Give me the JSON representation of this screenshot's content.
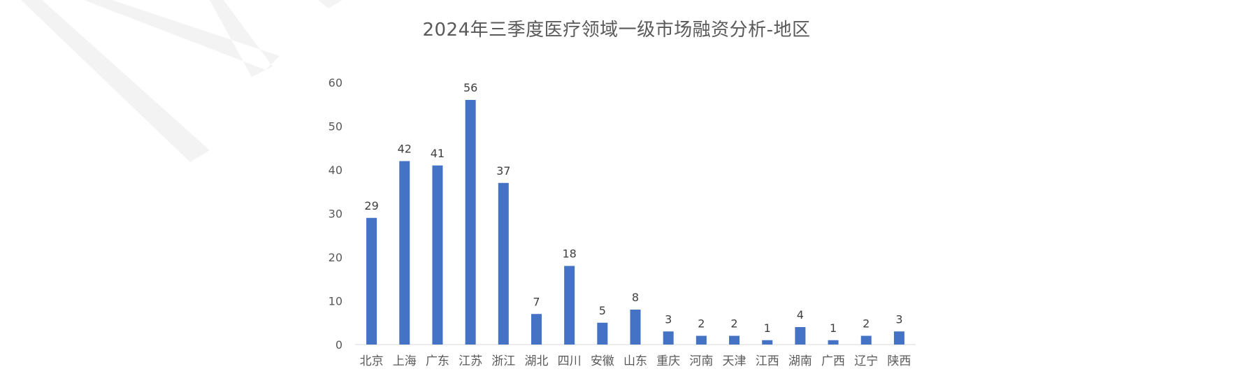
{
  "chart_data": {
    "type": "bar",
    "title": "2024年三季度医疗领域一级市场融资分析-地区",
    "categories": [
      "北京",
      "上海",
      "广东",
      "江苏",
      "浙江",
      "湖北",
      "四川",
      "安徽",
      "山东",
      "重庆",
      "河南",
      "天津",
      "江西",
      "湖南",
      "广西",
      "辽宁",
      "陕西"
    ],
    "values": [
      29,
      42,
      41,
      56,
      37,
      7,
      18,
      5,
      8,
      3,
      2,
      2,
      1,
      4,
      1,
      2,
      3
    ],
    "ylim": [
      0,
      60
    ],
    "yticks": [
      0,
      10,
      20,
      30,
      40,
      50,
      60
    ],
    "grid": false,
    "legend": "none",
    "data_labels": true,
    "bar_color": "#4472C4",
    "axis_color": "#D9D9D9",
    "watermark_color": "#F2F2F2"
  }
}
